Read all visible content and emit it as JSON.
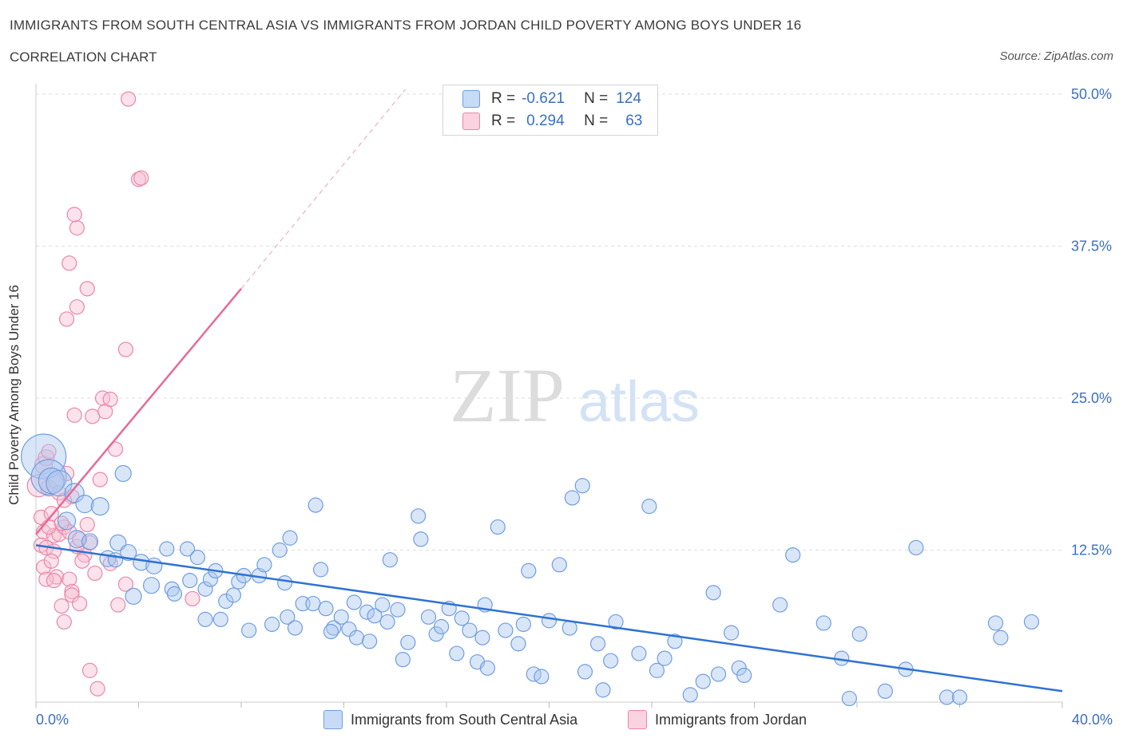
{
  "header": {
    "title": "IMMIGRANTS FROM SOUTH CENTRAL ASIA VS IMMIGRANTS FROM JORDAN CHILD POVERTY AMONG BOYS UNDER 16",
    "subtitle": "CORRELATION CHART",
    "source": "Source: ZipAtlas.com"
  },
  "watermark": {
    "zip": "ZIP",
    "atlas": "atlas"
  },
  "legend": {
    "r_label": "R =",
    "n_label": "N =",
    "series": [
      {
        "r": "-0.621",
        "n": "124"
      },
      {
        "r": "0.294",
        "n": "63"
      }
    ]
  },
  "colors": {
    "blue_fill": "#aac8f0",
    "blue_stroke": "#6f9ee0",
    "blue_line": "#2f72d3",
    "pink_fill": "#f7bfd2",
    "pink_stroke": "#ea87a8",
    "pink_line": "#e56b94",
    "axis_text": "#3a6fc4"
  },
  "chart_data": {
    "type": "scatter",
    "title": "IMMIGRANTS FROM SOUTH CENTRAL ASIA VS IMMIGRANTS FROM JORDAN CHILD POVERTY AMONG BOYS UNDER 16",
    "xlabel": "",
    "ylabel": "Child Poverty Among Boys Under 16",
    "xlim": [
      0,
      40
    ],
    "ylim": [
      0,
      50
    ],
    "x_tick_labels": [
      "0.0%",
      "40.0%"
    ],
    "y_ticks": [
      12.5,
      25.0,
      37.5,
      50.0
    ],
    "y_tick_labels": [
      "12.5%",
      "25.0%",
      "37.5%",
      "50.0%"
    ],
    "grid": true,
    "series": [
      {
        "name": "Immigrants from South Central Asia",
        "color": "#aac8f0",
        "trend": {
          "x": [
            0,
            40
          ],
          "y": [
            12.9,
            0.9
          ]
        },
        "points": [
          [
            0.3,
            20.2,
            28
          ],
          [
            0.5,
            18.5,
            22
          ],
          [
            0.6,
            18.2,
            16
          ],
          [
            0.9,
            18.0,
            16
          ],
          [
            1.5,
            17.2,
            12
          ],
          [
            1.9,
            16.3,
            11
          ],
          [
            2.5,
            16.1,
            11
          ],
          [
            3.4,
            18.8,
            10
          ],
          [
            1.2,
            14.9,
            11
          ],
          [
            1.6,
            13.4,
            11
          ],
          [
            2.1,
            13.2,
            10
          ],
          [
            3.2,
            13.1,
            10
          ],
          [
            2.8,
            11.8,
            10
          ],
          [
            3.6,
            12.3,
            10
          ],
          [
            4.1,
            11.5,
            10
          ],
          [
            4.6,
            11.2,
            10
          ],
          [
            4.5,
            9.6,
            10
          ],
          [
            3.8,
            8.7,
            10
          ],
          [
            5.1,
            12.6,
            9
          ],
          [
            5.3,
            9.3,
            9
          ],
          [
            5.4,
            8.9,
            9
          ],
          [
            5.9,
            12.6,
            9
          ],
          [
            6.0,
            10.0,
            9
          ],
          [
            6.3,
            11.9,
            9
          ],
          [
            6.6,
            9.3,
            9
          ],
          [
            6.8,
            10.1,
            9
          ],
          [
            7.0,
            10.8,
            9
          ],
          [
            7.2,
            6.8,
            9
          ],
          [
            7.4,
            8.3,
            9
          ],
          [
            7.7,
            8.8,
            9
          ],
          [
            7.9,
            9.9,
            9
          ],
          [
            8.1,
            10.4,
            9
          ],
          [
            8.3,
            5.9,
            9
          ],
          [
            8.7,
            10.4,
            9
          ],
          [
            8.9,
            11.3,
            9
          ],
          [
            9.2,
            6.4,
            9
          ],
          [
            9.5,
            12.5,
            9
          ],
          [
            9.8,
            7.0,
            9
          ],
          [
            9.9,
            13.5,
            9
          ],
          [
            10.1,
            6.1,
            9
          ],
          [
            10.4,
            8.1,
            9
          ],
          [
            10.8,
            8.1,
            9
          ],
          [
            10.9,
            16.2,
            9
          ],
          [
            11.1,
            10.9,
            9
          ],
          [
            11.3,
            7.7,
            9
          ],
          [
            11.6,
            6.1,
            9
          ],
          [
            11.9,
            7.0,
            9
          ],
          [
            12.2,
            6.0,
            9
          ],
          [
            12.4,
            8.2,
            9
          ],
          [
            12.5,
            5.3,
            9
          ],
          [
            12.9,
            7.4,
            9
          ],
          [
            13.0,
            5.0,
            9
          ],
          [
            13.2,
            7.1,
            9
          ],
          [
            13.5,
            8.0,
            9
          ],
          [
            13.7,
            6.6,
            9
          ],
          [
            13.8,
            11.7,
            9
          ],
          [
            14.1,
            7.6,
            9
          ],
          [
            14.3,
            3.5,
            9
          ],
          [
            14.5,
            4.9,
            9
          ],
          [
            14.9,
            15.3,
            9
          ],
          [
            15.0,
            13.4,
            9
          ],
          [
            15.3,
            7.0,
            9
          ],
          [
            15.6,
            5.6,
            9
          ],
          [
            15.8,
            6.2,
            9
          ],
          [
            16.1,
            7.7,
            9
          ],
          [
            16.4,
            4.0,
            9
          ],
          [
            16.6,
            6.9,
            9
          ],
          [
            16.9,
            5.9,
            9
          ],
          [
            17.2,
            3.3,
            9
          ],
          [
            17.5,
            8.0,
            9
          ],
          [
            17.6,
            2.8,
            9
          ],
          [
            18.0,
            14.4,
            9
          ],
          [
            18.3,
            5.9,
            9
          ],
          [
            18.8,
            4.8,
            9
          ],
          [
            19.0,
            6.4,
            9
          ],
          [
            19.2,
            10.8,
            9
          ],
          [
            19.4,
            2.3,
            9
          ],
          [
            19.7,
            2.1,
            9
          ],
          [
            20.0,
            6.7,
            9
          ],
          [
            20.4,
            11.3,
            9
          ],
          [
            20.8,
            6.1,
            9
          ],
          [
            20.9,
            16.8,
            9
          ],
          [
            21.3,
            17.8,
            9
          ],
          [
            21.4,
            2.5,
            9
          ],
          [
            21.9,
            4.8,
            9
          ],
          [
            22.1,
            1.0,
            9
          ],
          [
            22.4,
            3.4,
            9
          ],
          [
            22.6,
            6.6,
            9
          ],
          [
            23.5,
            4.0,
            9
          ],
          [
            23.9,
            16.1,
            9
          ],
          [
            24.2,
            2.6,
            9
          ],
          [
            24.5,
            3.6,
            9
          ],
          [
            24.9,
            5.0,
            9
          ],
          [
            25.5,
            0.6,
            9
          ],
          [
            26.0,
            1.7,
            9
          ],
          [
            26.4,
            9.0,
            9
          ],
          [
            26.6,
            2.3,
            9
          ],
          [
            27.1,
            5.7,
            9
          ],
          [
            27.4,
            2.8,
            9
          ],
          [
            27.6,
            2.2,
            9
          ],
          [
            29.0,
            8.0,
            9
          ],
          [
            29.5,
            12.1,
            9
          ],
          [
            30.7,
            6.5,
            9
          ],
          [
            31.4,
            3.6,
            9
          ],
          [
            32.1,
            5.6,
            9
          ],
          [
            33.1,
            0.9,
            9
          ],
          [
            33.9,
            2.7,
            9
          ],
          [
            34.3,
            12.7,
            9
          ],
          [
            35.5,
            0.4,
            9
          ],
          [
            36.0,
            0.4,
            9
          ],
          [
            37.4,
            6.5,
            9
          ],
          [
            37.6,
            5.3,
            9
          ],
          [
            38.8,
            6.6,
            9
          ],
          [
            31.7,
            0.3,
            9
          ],
          [
            17.4,
            5.3,
            9
          ],
          [
            11.5,
            5.8,
            9
          ],
          [
            6.6,
            6.8,
            9
          ],
          [
            3.1,
            11.7,
            9
          ],
          [
            9.7,
            9.8,
            9
          ]
        ]
      },
      {
        "name": "Immigrants from Jordan",
        "color": "#f7bfd2",
        "trend": {
          "x": [
            0,
            8.0
          ],
          "y": [
            13.8,
            34.0
          ]
        },
        "trend_dashed": {
          "x": [
            8.0,
            14.4
          ],
          "y": [
            34.0,
            50.4
          ]
        },
        "points": [
          [
            0.1,
            17.8,
            14
          ],
          [
            0.3,
            19.5,
            11
          ],
          [
            0.4,
            20.1,
            10
          ],
          [
            0.5,
            17.6,
            10
          ],
          [
            0.8,
            18.2,
            10
          ],
          [
            1.2,
            18.8,
            9
          ],
          [
            1.4,
            16.9,
            9
          ],
          [
            0.2,
            15.2,
            9
          ],
          [
            0.3,
            14.0,
            9
          ],
          [
            0.6,
            15.5,
            9
          ],
          [
            0.7,
            13.7,
            9
          ],
          [
            0.9,
            13.8,
            9
          ],
          [
            1.1,
            14.4,
            9
          ],
          [
            1.3,
            14.0,
            9
          ],
          [
            0.2,
            12.9,
            9
          ],
          [
            0.4,
            12.7,
            9
          ],
          [
            0.7,
            12.4,
            9
          ],
          [
            0.3,
            11.1,
            9
          ],
          [
            0.6,
            11.6,
            9
          ],
          [
            0.8,
            10.3,
            9
          ],
          [
            0.4,
            10.1,
            9
          ],
          [
            0.7,
            10.0,
            9
          ],
          [
            1.3,
            10.1,
            9
          ],
          [
            1.9,
            12.1,
            9
          ],
          [
            1.8,
            11.6,
            9
          ],
          [
            2.0,
            14.6,
            9
          ],
          [
            1.6,
            12.8,
            9
          ],
          [
            2.3,
            10.6,
            9
          ],
          [
            1.0,
            14.7,
            9
          ],
          [
            2.1,
            13.1,
            9
          ],
          [
            1.4,
            9.1,
            9
          ],
          [
            1.4,
            8.8,
            9
          ],
          [
            1.7,
            8.1,
            9
          ],
          [
            1.0,
            7.9,
            9
          ],
          [
            1.1,
            6.6,
            9
          ],
          [
            3.2,
            8.0,
            9
          ],
          [
            3.5,
            9.7,
            9
          ],
          [
            6.1,
            8.5,
            9
          ],
          [
            2.2,
            23.5,
            9
          ],
          [
            2.6,
            25.0,
            9
          ],
          [
            2.7,
            23.9,
            9
          ],
          [
            2.9,
            24.9,
            9
          ],
          [
            3.1,
            20.8,
            9
          ],
          [
            1.5,
            23.6,
            9
          ],
          [
            3.5,
            29.0,
            9
          ],
          [
            1.2,
            31.5,
            9
          ],
          [
            1.6,
            32.5,
            9
          ],
          [
            2.0,
            34.0,
            9
          ],
          [
            1.3,
            36.1,
            9
          ],
          [
            1.6,
            39.0,
            9
          ],
          [
            1.5,
            40.1,
            9
          ],
          [
            4.0,
            43.0,
            9
          ],
          [
            4.1,
            43.1,
            9
          ],
          [
            3.6,
            49.6,
            9
          ],
          [
            2.1,
            2.6,
            9
          ],
          [
            2.4,
            1.1,
            9
          ],
          [
            0.5,
            20.6,
            9
          ],
          [
            0.9,
            17.2,
            9
          ],
          [
            1.1,
            16.6,
            9
          ],
          [
            2.5,
            18.3,
            9
          ],
          [
            0.5,
            14.4,
            9
          ],
          [
            1.7,
            13.4,
            9
          ],
          [
            2.9,
            11.4,
            9
          ]
        ]
      }
    ],
    "legend": [
      "Immigrants from South Central Asia",
      "Immigrants from Jordan"
    ]
  }
}
